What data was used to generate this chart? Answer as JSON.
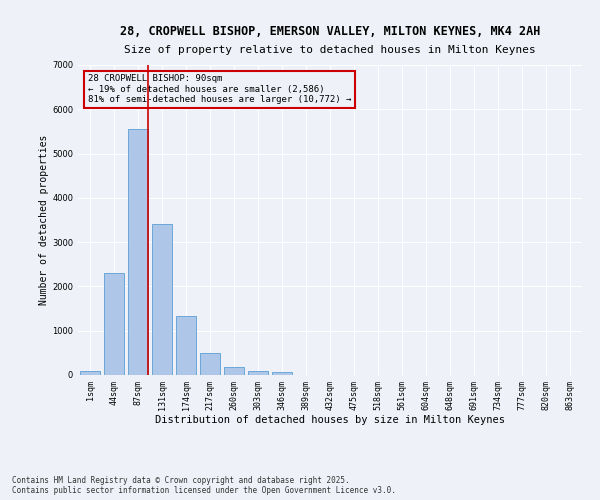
{
  "title_line1": "28, CROPWELL BISHOP, EMERSON VALLEY, MILTON KEYNES, MK4 2AH",
  "title_line2": "Size of property relative to detached houses in Milton Keynes",
  "xlabel": "Distribution of detached houses by size in Milton Keynes",
  "ylabel": "Number of detached properties",
  "categories": [
    "1sqm",
    "44sqm",
    "87sqm",
    "131sqm",
    "174sqm",
    "217sqm",
    "260sqm",
    "303sqm",
    "346sqm",
    "389sqm",
    "432sqm",
    "475sqm",
    "518sqm",
    "561sqm",
    "604sqm",
    "648sqm",
    "691sqm",
    "734sqm",
    "777sqm",
    "820sqm",
    "863sqm"
  ],
  "values": [
    80,
    2300,
    5550,
    3400,
    1330,
    490,
    190,
    100,
    70,
    0,
    0,
    0,
    0,
    0,
    0,
    0,
    0,
    0,
    0,
    0,
    0
  ],
  "bar_color": "#aec6e8",
  "bar_edge_color": "#5a9fd4",
  "vline_color": "#cc0000",
  "vline_index": 2,
  "annotation_text": "28 CROPWELL BISHOP: 90sqm\n← 19% of detached houses are smaller (2,586)\n81% of semi-detached houses are larger (10,772) →",
  "annotation_box_edgecolor": "#cc0000",
  "background_color": "#eef2f8",
  "grid_color": "#ffffff",
  "ylim": [
    0,
    7000
  ],
  "yticks": [
    0,
    1000,
    2000,
    3000,
    4000,
    5000,
    6000,
    7000
  ],
  "footer_text": "Contains HM Land Registry data © Crown copyright and database right 2025.\nContains public sector information licensed under the Open Government Licence v3.0.",
  "title_fontsize": 8.5,
  "xlabel_fontsize": 7.5,
  "ylabel_fontsize": 7,
  "tick_fontsize": 6,
  "annotation_fontsize": 6.5,
  "footer_fontsize": 5.5
}
